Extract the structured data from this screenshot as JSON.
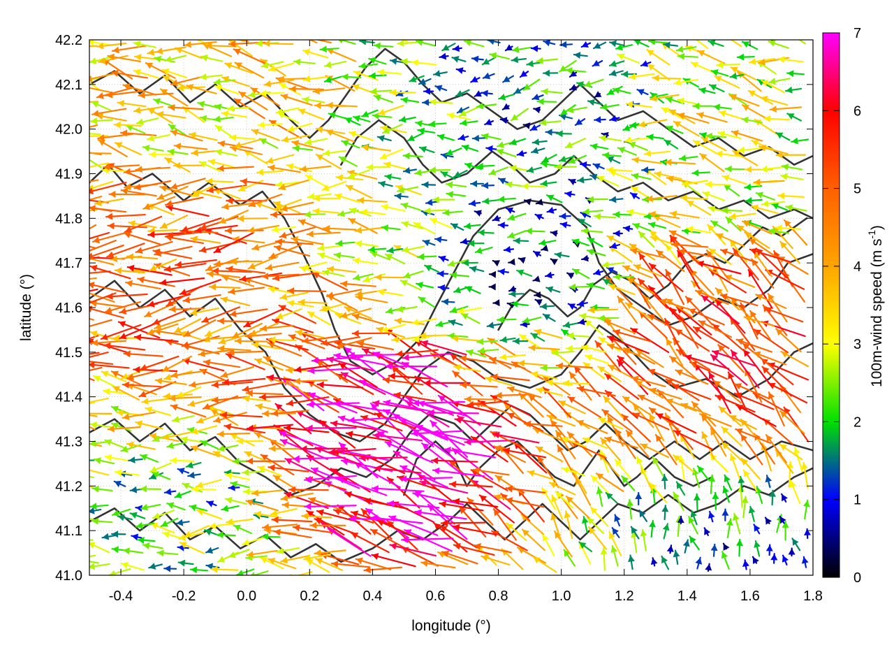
{
  "chart_data": {
    "type": "vector-field",
    "xlabel": "longitude (°)",
    "ylabel": "latitude (°)",
    "xlim": [
      -0.5,
      1.8
    ],
    "ylim": [
      41.0,
      42.2
    ],
    "xticks": [
      -0.4,
      -0.2,
      0.0,
      0.2,
      0.4,
      0.6,
      0.8,
      1.0,
      1.2,
      1.4,
      1.6,
      1.8
    ],
    "xtick_labels": [
      "-0.4",
      "-0.2",
      "0.0",
      "0.2",
      "0.4",
      "0.6",
      "0.8",
      "1.0",
      "1.2",
      "1.4",
      "1.6",
      "1.8"
    ],
    "yticks": [
      41.0,
      41.1,
      41.2,
      41.3,
      41.4,
      41.5,
      41.6,
      41.7,
      41.8,
      41.9,
      42.0,
      42.1,
      42.2
    ],
    "ytick_labels": [
      "41.0",
      "41.1",
      "41.2",
      "41.3",
      "41.4",
      "41.5",
      "41.6",
      "41.7",
      "41.8",
      "41.9",
      "42.0",
      "42.1",
      "42.2"
    ],
    "grid": true,
    "colorbar": {
      "label": "100m-wind speed (m s-1)",
      "label_main": "100m-wind speed (m s",
      "label_sup": "-1",
      "label_end": ")",
      "range": [
        0,
        7
      ],
      "ticks": [
        0,
        1,
        2,
        3,
        4,
        5,
        6,
        7
      ],
      "tick_labels": [
        "0",
        "1",
        "2",
        "3",
        "4",
        "5",
        "6",
        "7"
      ],
      "palette": [
        {
          "value": 0.0,
          "color": "#000000"
        },
        {
          "value": 1.0,
          "color": "#0000ff"
        },
        {
          "value": 2.0,
          "color": "#00e000"
        },
        {
          "value": 3.0,
          "color": "#ffff00"
        },
        {
          "value": 4.0,
          "color": "#ffa500"
        },
        {
          "value": 5.0,
          "color": "#ff6000"
        },
        {
          "value": 6.0,
          "color": "#ff0000"
        },
        {
          "value": 7.0,
          "color": "#ff00ff"
        }
      ]
    },
    "series": [
      {
        "kind": "wind-vectors",
        "units": "m s-1",
        "regions": [
          {
            "lon": [
              -0.5,
              0.15
            ],
            "lat": [
              41.45,
              41.9
            ],
            "speed": 4.8,
            "direction_deg": 185
          },
          {
            "lon": [
              -0.5,
              0.2
            ],
            "lat": [
              41.9,
              42.2
            ],
            "speed": 3.6,
            "direction_deg": 170
          },
          {
            "lon": [
              -0.5,
              0.1
            ],
            "lat": [
              41.0,
              41.25
            ],
            "speed": 2.2,
            "direction_deg": 180
          },
          {
            "lon": [
              0.35,
              0.7
            ],
            "lat": [
              41.05,
              41.5
            ],
            "speed": 6.8,
            "direction_deg": 160
          },
          {
            "lon": [
              0.75,
              1.15
            ],
            "lat": [
              41.55,
              41.85
            ],
            "speed": 1.2,
            "direction_deg": 175
          },
          {
            "lon": [
              0.85,
              1.15
            ],
            "lat": [
              41.95,
              42.15
            ],
            "speed": 1.5,
            "direction_deg": 190
          },
          {
            "lon": [
              1.2,
              1.8
            ],
            "lat": [
              41.25,
              41.75
            ],
            "speed": 5.2,
            "direction_deg": 140
          },
          {
            "lon": [
              1.25,
              1.8
            ],
            "lat": [
              41.0,
              41.1
            ],
            "speed": 1.6,
            "direction_deg": 100
          },
          {
            "lon": [
              1.3,
              1.8
            ],
            "lat": [
              41.8,
              42.2
            ],
            "speed": 3.0,
            "direction_deg": 165
          }
        ]
      },
      {
        "kind": "terrain-contours",
        "lines": [
          [
            [
              -0.5,
              41.88
            ],
            [
              -0.44,
              41.92
            ],
            [
              -0.38,
              41.87
            ],
            [
              -0.3,
              41.9
            ],
            [
              -0.2,
              41.84
            ],
            [
              -0.12,
              41.88
            ],
            [
              -0.02,
              41.83
            ],
            [
              0.05,
              41.86
            ],
            [
              0.12,
              41.8
            ],
            [
              0.18,
              41.72
            ],
            [
              0.24,
              41.63
            ],
            [
              0.28,
              41.55
            ],
            [
              0.33,
              41.48
            ],
            [
              0.4,
              41.45
            ],
            [
              0.48,
              41.48
            ],
            [
              0.55,
              41.53
            ],
            [
              0.6,
              41.6
            ],
            [
              0.66,
              41.68
            ],
            [
              0.72,
              41.76
            ],
            [
              0.8,
              41.82
            ],
            [
              0.9,
              41.84
            ],
            [
              1.0,
              41.83
            ],
            [
              1.08,
              41.78
            ],
            [
              1.12,
              41.7
            ],
            [
              1.18,
              41.64
            ],
            [
              1.26,
              41.6
            ],
            [
              1.34,
              41.56
            ],
            [
              1.42,
              41.58
            ],
            [
              1.5,
              41.62
            ],
            [
              1.58,
              41.6
            ],
            [
              1.66,
              41.64
            ],
            [
              1.72,
              41.7
            ],
            [
              1.8,
              41.72
            ]
          ],
          [
            [
              -0.5,
              41.62
            ],
            [
              -0.42,
              41.66
            ],
            [
              -0.34,
              41.6
            ],
            [
              -0.26,
              41.64
            ],
            [
              -0.18,
              41.58
            ],
            [
              -0.1,
              41.62
            ],
            [
              -0.02,
              41.55
            ],
            [
              0.06,
              41.5
            ],
            [
              0.12,
              41.42
            ],
            [
              0.2,
              41.36
            ],
            [
              0.28,
              41.32
            ],
            [
              0.36,
              41.3
            ],
            [
              0.44,
              41.34
            ],
            [
              0.5,
              41.4
            ],
            [
              0.56,
              41.46
            ],
            [
              0.64,
              41.5
            ],
            [
              0.72,
              41.48
            ],
            [
              0.8,
              41.44
            ],
            [
              0.9,
              41.42
            ],
            [
              1.0,
              41.45
            ],
            [
              1.06,
              41.5
            ],
            [
              1.12,
              41.56
            ],
            [
              1.2,
              41.52
            ],
            [
              1.28,
              41.46
            ],
            [
              1.36,
              41.42
            ],
            [
              1.46,
              41.44
            ],
            [
              1.56,
              41.4
            ],
            [
              1.66,
              41.44
            ],
            [
              1.74,
              41.5
            ],
            [
              1.8,
              41.52
            ]
          ],
          [
            [
              -0.5,
              41.32
            ],
            [
              -0.42,
              41.35
            ],
            [
              -0.34,
              41.3
            ],
            [
              -0.26,
              41.34
            ],
            [
              -0.18,
              41.28
            ],
            [
              -0.1,
              41.31
            ],
            [
              -0.02,
              41.25
            ],
            [
              0.06,
              41.22
            ],
            [
              0.14,
              41.18
            ],
            [
              0.22,
              41.2
            ],
            [
              0.3,
              41.24
            ],
            [
              0.38,
              41.22
            ],
            [
              0.46,
              41.26
            ],
            [
              0.52,
              41.32
            ],
            [
              0.58,
              41.36
            ],
            [
              0.66,
              41.34
            ],
            [
              0.72,
              41.3
            ],
            [
              0.78,
              41.34
            ],
            [
              0.84,
              41.38
            ],
            [
              0.9,
              41.36
            ],
            [
              0.96,
              41.32
            ],
            [
              1.02,
              41.28
            ],
            [
              1.08,
              41.3
            ],
            [
              1.14,
              41.34
            ],
            [
              1.2,
              41.3
            ],
            [
              1.28,
              41.26
            ],
            [
              1.36,
              41.3
            ],
            [
              1.44,
              41.26
            ],
            [
              1.52,
              41.3
            ],
            [
              1.6,
              41.26
            ],
            [
              1.7,
              41.3
            ],
            [
              1.8,
              41.28
            ]
          ],
          [
            [
              -0.5,
              41.12
            ],
            [
              -0.42,
              41.15
            ],
            [
              -0.34,
              41.1
            ],
            [
              -0.26,
              41.14
            ],
            [
              -0.18,
              41.08
            ],
            [
              -0.1,
              41.11
            ],
            [
              -0.02,
              41.06
            ],
            [
              0.06,
              41.09
            ],
            [
              0.14,
              41.04
            ],
            [
              0.22,
              41.07
            ],
            [
              0.3,
              41.03
            ],
            [
              0.4,
              41.06
            ],
            [
              0.48,
              41.1
            ],
            [
              0.56,
              41.08
            ],
            [
              0.64,
              41.12
            ],
            [
              0.7,
              41.16
            ],
            [
              0.76,
              41.12
            ],
            [
              0.82,
              41.08
            ],
            [
              0.88,
              41.12
            ],
            [
              0.94,
              41.16
            ],
            [
              1.0,
              41.12
            ],
            [
              1.06,
              41.08
            ],
            [
              1.12,
              41.12
            ],
            [
              1.18,
              41.16
            ],
            [
              1.26,
              41.14
            ],
            [
              1.34,
              41.18
            ],
            [
              1.42,
              41.14
            ],
            [
              1.5,
              41.16
            ],
            [
              1.58,
              41.2
            ],
            [
              1.66,
              41.18
            ],
            [
              1.74,
              41.22
            ],
            [
              1.8,
              41.24
            ]
          ],
          [
            [
              -0.5,
              42.1
            ],
            [
              -0.42,
              42.13
            ],
            [
              -0.34,
              42.08
            ],
            [
              -0.26,
              42.12
            ],
            [
              -0.18,
              42.06
            ],
            [
              -0.1,
              42.1
            ],
            [
              -0.02,
              42.05
            ],
            [
              0.06,
              42.08
            ],
            [
              0.14,
              42.02
            ],
            [
              0.2,
              41.98
            ],
            [
              0.26,
              42.02
            ],
            [
              0.32,
              42.08
            ],
            [
              0.38,
              42.14
            ],
            [
              0.44,
              42.18
            ],
            [
              0.5,
              42.15
            ],
            [
              0.56,
              42.1
            ],
            [
              0.62,
              42.06
            ],
            [
              0.7,
              42.08
            ],
            [
              0.78,
              42.04
            ],
            [
              0.86,
              42.0
            ],
            [
              0.94,
              42.02
            ],
            [
              1.0,
              42.06
            ],
            [
              1.06,
              42.1
            ],
            [
              1.12,
              42.06
            ],
            [
              1.18,
              42.02
            ],
            [
              1.26,
              42.04
            ],
            [
              1.34,
              42.0
            ],
            [
              1.42,
              41.96
            ],
            [
              1.5,
              41.98
            ],
            [
              1.58,
              41.94
            ],
            [
              1.66,
              41.96
            ],
            [
              1.74,
              41.92
            ],
            [
              1.8,
              41.94
            ]
          ],
          [
            [
              0.3,
              41.92
            ],
            [
              0.35,
              41.98
            ],
            [
              0.42,
              42.02
            ],
            [
              0.5,
              41.98
            ],
            [
              0.56,
              41.92
            ],
            [
              0.62,
              41.88
            ],
            [
              0.7,
              41.9
            ],
            [
              0.78,
              41.95
            ],
            [
              0.84,
              41.92
            ],
            [
              0.9,
              41.88
            ],
            [
              0.98,
              41.9
            ],
            [
              1.04,
              41.94
            ],
            [
              1.1,
              41.9
            ],
            [
              1.18,
              41.86
            ],
            [
              1.26,
              41.88
            ],
            [
              1.34,
              41.84
            ],
            [
              1.42,
              41.86
            ],
            [
              1.5,
              41.82
            ],
            [
              1.58,
              41.84
            ],
            [
              1.66,
              41.8
            ],
            [
              1.74,
              41.82
            ],
            [
              1.8,
              41.8
            ]
          ],
          [
            [
              0.5,
              41.18
            ],
            [
              0.54,
              41.26
            ],
            [
              0.6,
              41.3
            ],
            [
              0.66,
              41.26
            ],
            [
              0.7,
              41.2
            ],
            [
              0.74,
              41.24
            ],
            [
              0.8,
              41.28
            ],
            [
              0.86,
              41.3
            ],
            [
              0.92,
              41.26
            ],
            [
              0.98,
              41.22
            ],
            [
              1.04,
              41.2
            ],
            [
              1.08,
              41.24
            ],
            [
              1.12,
              41.28
            ],
            [
              1.16,
              41.24
            ],
            [
              1.2,
              41.2
            ],
            [
              1.24,
              41.22
            ],
            [
              1.3,
              41.26
            ],
            [
              1.36,
              41.22
            ],
            [
              1.42,
              41.2
            ],
            [
              1.48,
              41.22
            ]
          ],
          [
            [
              0.8,
              41.55
            ],
            [
              0.84,
              41.6
            ],
            [
              0.9,
              41.64
            ],
            [
              0.96,
              41.62
            ],
            [
              1.02,
              41.58
            ],
            [
              1.06,
              41.6
            ],
            [
              1.1,
              41.65
            ],
            [
              1.16,
              41.68
            ],
            [
              1.22,
              41.66
            ],
            [
              1.28,
              41.62
            ],
            [
              1.34,
              41.65
            ],
            [
              1.4,
              41.7
            ],
            [
              1.46,
              41.72
            ],
            [
              1.52,
              41.7
            ],
            [
              1.58,
              41.74
            ],
            [
              1.64,
              41.78
            ],
            [
              1.7,
              41.76
            ],
            [
              1.78,
              41.8
            ]
          ]
        ]
      }
    ]
  }
}
